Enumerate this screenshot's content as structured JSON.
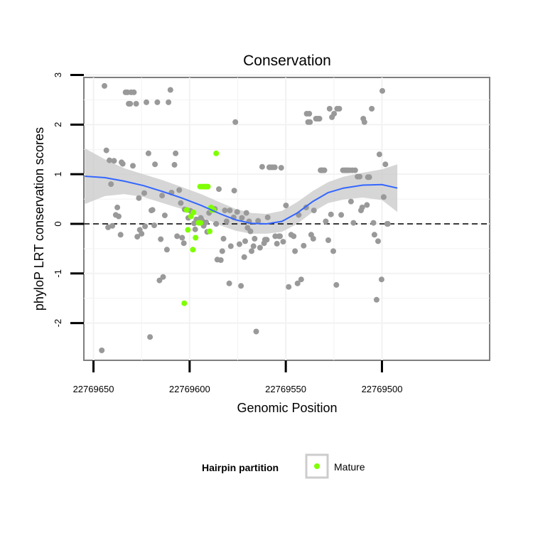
{
  "chart_data": {
    "type": "scatter",
    "title": "Conservation",
    "xlabel": "Genomic Position",
    "ylabel": "phyloP LRT conservation scores",
    "x_reversed": true,
    "xlim": [
      22769655,
      22769444
    ],
    "ylim": [
      -2.75,
      2.95
    ],
    "x_ticks": [
      22769650,
      22769600,
      22769550,
      22769500
    ],
    "x_tick_labels": [
      "22769650",
      "22769600",
      "22769550",
      "22769500"
    ],
    "y_ticks": [
      3,
      2,
      1,
      0,
      -1,
      -2
    ],
    "y_tick_labels": [
      "3",
      "2",
      "1",
      "0",
      "-1",
      "-2"
    ],
    "grid": true,
    "reference_line": {
      "y": 0,
      "style": "dashed",
      "color": "#000000"
    },
    "legend": {
      "title": "Hairpin partition",
      "position": "bottom",
      "entries": [
        {
          "label": "Mature",
          "color": "#7FFF00"
        }
      ]
    },
    "colors": {
      "points": "#999999",
      "mature": "#7FFF00",
      "smooth": "#3366FF",
      "ribbon": "#c8c8c8",
      "panel_border": "#7f7f7f",
      "grid": "#f2f2f2"
    },
    "series": [
      {
        "name": "",
        "color": "#999999",
        "points": [
          [
            22769645.7,
            -2.55
          ],
          [
            22769644.3,
            2.78
          ],
          [
            22769643.3,
            1.48
          ],
          [
            22769642.4,
            -0.07
          ],
          [
            22769641.7,
            1.28
          ],
          [
            22769640.9,
            0.8
          ],
          [
            22769640.2,
            -0.04
          ],
          [
            22769639.3,
            1.27
          ],
          [
            22769638.4,
            0.18
          ],
          [
            22769637.6,
            0.33
          ],
          [
            22769636.9,
            0.15
          ],
          [
            22769635.9,
            -0.22
          ],
          [
            22769635.4,
            1.24
          ],
          [
            22769634.8,
            1.21
          ],
          [
            22769633.3,
            2.65
          ],
          [
            22769632.3,
            2.65
          ],
          [
            22769631.7,
            2.42
          ],
          [
            22769630.9,
            2.42
          ],
          [
            22769630.4,
            2.65
          ],
          [
            22769629.5,
            1.17
          ],
          [
            22769629.0,
            2.65
          ],
          [
            22769627.8,
            2.42
          ],
          [
            22769627.2,
            -0.26
          ],
          [
            22769626.4,
            0.52
          ],
          [
            22769625.9,
            -0.12
          ],
          [
            22769625.0,
            -0.2
          ],
          [
            22769623.6,
            0.62
          ],
          [
            22769623.2,
            -0.05
          ],
          [
            22769622.5,
            2.45
          ],
          [
            22769621.4,
            1.42
          ],
          [
            22769620.6,
            -2.28
          ],
          [
            22769619.9,
            0.27
          ],
          [
            22769619.3,
            0.28
          ],
          [
            22769618.4,
            -0.03
          ],
          [
            22769618.0,
            1.2
          ],
          [
            22769616.8,
            2.45
          ],
          [
            22769615.7,
            -1.14
          ],
          [
            22769615.0,
            -0.31
          ],
          [
            22769614.3,
            0.57
          ],
          [
            22769613.8,
            -1.07
          ],
          [
            22769612.9,
            0.17
          ],
          [
            22769611.8,
            -0.52
          ],
          [
            22769611.0,
            2.45
          ],
          [
            22769610.0,
            2.7
          ],
          [
            22769609.4,
            0.63
          ],
          [
            22769607.9,
            1.19
          ],
          [
            22769607.3,
            1.42
          ],
          [
            22769606.5,
            -0.25
          ],
          [
            22769605.4,
            0.68
          ],
          [
            22769604.6,
            0.42
          ],
          [
            22769603.9,
            -0.28
          ],
          [
            22769603.0,
            -0.39
          ],
          [
            22769602.6,
            0.29
          ],
          [
            22769600.7,
            0.12
          ],
          [
            22769599.5,
            0.26
          ],
          [
            22769597.7,
            0.01
          ],
          [
            22769597.1,
            -0.11
          ],
          [
            22769596.5,
            0.09
          ],
          [
            22769594.2,
            0.12
          ],
          [
            22769593.5,
            0.07
          ],
          [
            22769592.7,
            -0.04
          ],
          [
            22769591.4,
            0.03
          ],
          [
            22769590.9,
            -0.16
          ],
          [
            22769589.9,
            0.22
          ],
          [
            22769586.9,
            0.3
          ],
          [
            22769586.2,
            0.0
          ],
          [
            22769585.6,
            -0.72
          ],
          [
            22769584.8,
            0.7
          ],
          [
            22769583.8,
            -0.73
          ],
          [
            22769583.0,
            -0.55
          ],
          [
            22769582.4,
            -0.3
          ],
          [
            22769581.7,
            0.27
          ],
          [
            22769580.8,
            0.05
          ],
          [
            22769579.4,
            -1.2
          ],
          [
            22769579.1,
            0.27
          ],
          [
            22769578.6,
            -0.45
          ],
          [
            22769577.1,
            0.13
          ],
          [
            22769576.8,
            0.67
          ],
          [
            22769576.2,
            2.05
          ],
          [
            22769575.3,
            0.24
          ],
          [
            22769574.1,
            -0.41
          ],
          [
            22769573.3,
            -1.25
          ],
          [
            22769572.8,
            0.12
          ],
          [
            22769571.6,
            -0.67
          ],
          [
            22769571.1,
            -0.35
          ],
          [
            22769570.5,
            0.22
          ],
          [
            22769569.9,
            -0.08
          ],
          [
            22769569.1,
            0.05
          ],
          [
            22769568.4,
            -0.15
          ],
          [
            22769567.8,
            -0.55
          ],
          [
            22769566.8,
            -0.45
          ],
          [
            22769566.2,
            -0.3
          ],
          [
            22769565.4,
            -2.17
          ],
          [
            22769564.4,
            0.06
          ],
          [
            22769563.4,
            -0.48
          ],
          [
            22769562.3,
            1.15
          ],
          [
            22769561.3,
            -0.39
          ],
          [
            22769560.8,
            -0.32
          ],
          [
            22769559.9,
            -0.32
          ],
          [
            22769559.4,
            0.13
          ],
          [
            22769558.6,
            1.14
          ],
          [
            22769557.8,
            1.14
          ],
          [
            22769556.8,
            1.14
          ],
          [
            22769555.7,
            1.14
          ],
          [
            22769555.5,
            -0.25
          ],
          [
            22769554.6,
            -0.4
          ],
          [
            22769553.5,
            -0.25
          ],
          [
            22769553.0,
            -0.25
          ],
          [
            22769552.4,
            1.13
          ],
          [
            22769551.4,
            -0.36
          ],
          [
            22769549.9,
            0.37
          ],
          [
            22769548.5,
            -1.27
          ],
          [
            22769547.2,
            -0.22
          ],
          [
            22769545.9,
            -0.25
          ],
          [
            22769545.2,
            -0.55
          ],
          [
            22769543.9,
            -1.2
          ],
          [
            22769543.3,
            0.18
          ],
          [
            22769542.0,
            -1.12
          ],
          [
            22769540.7,
            -0.44
          ],
          [
            22769539.4,
            0.33
          ],
          [
            22769539.1,
            2.22
          ],
          [
            22769538.4,
            2.05
          ],
          [
            22769537.8,
            2.22
          ],
          [
            22769537.4,
            2.05
          ],
          [
            22769536.8,
            -0.22
          ],
          [
            22769535.7,
            -0.3
          ],
          [
            22769535.4,
            0.27
          ],
          [
            22769534.3,
            2.12
          ],
          [
            22769533.3,
            2.12
          ],
          [
            22769532.5,
            2.12
          ],
          [
            22769531.9,
            1.08
          ],
          [
            22769531.4,
            1.08
          ],
          [
            22769530.8,
            1.08
          ],
          [
            22769529.9,
            1.08
          ],
          [
            22769529.2,
            0.05
          ],
          [
            22769527.9,
            -0.33
          ],
          [
            22769527.2,
            2.32
          ],
          [
            22769526.5,
            0.19
          ],
          [
            22769526.0,
            2.15
          ],
          [
            22769525.3,
            -0.55
          ],
          [
            22769524.9,
            2.22
          ],
          [
            22769523.7,
            -1.23
          ],
          [
            22769523.3,
            2.32
          ],
          [
            22769522.2,
            2.32
          ],
          [
            22769521.2,
            0.18
          ],
          [
            22769520.3,
            1.08
          ],
          [
            22769519.3,
            1.08
          ],
          [
            22769518.6,
            1.08
          ],
          [
            22769517.8,
            1.08
          ],
          [
            22769516.8,
            1.08
          ],
          [
            22769516.1,
            0.45
          ],
          [
            22769515.4,
            1.08
          ],
          [
            22769514.8,
            0.02
          ],
          [
            22769513.9,
            1.08
          ],
          [
            22769512.7,
            0.95
          ],
          [
            22769511.6,
            0.95
          ],
          [
            22769510.9,
            0.27
          ],
          [
            22769510.3,
            0.33
          ],
          [
            22769509.7,
            2.12
          ],
          [
            22769509.1,
            2.05
          ],
          [
            22769507.8,
            0.38
          ],
          [
            22769507.3,
            0.94
          ],
          [
            22769506.6,
            0.94
          ],
          [
            22769505.3,
            2.32
          ],
          [
            22769504.4,
            0.02
          ],
          [
            22769503.9,
            -0.22
          ],
          [
            22769502.8,
            -1.53
          ],
          [
            22769502.0,
            -0.35
          ],
          [
            22769501.3,
            1.4
          ],
          [
            22769500.2,
            -1.12
          ],
          [
            22769499.8,
            2.68
          ],
          [
            22769499.1,
            0.54
          ],
          [
            22769498.2,
            1.2
          ],
          [
            22769497.3,
            0.0
          ],
          [
            22769496.9,
            0.0
          ]
        ]
      },
      {
        "name": "Mature",
        "color": "#7FFF00",
        "points": [
          [
            22769601.5,
            0.28
          ],
          [
            22769600.9,
            -0.12
          ],
          [
            22769599.3,
            0.15
          ],
          [
            22769598.3,
            -0.52
          ],
          [
            22769598.0,
            0.23
          ],
          [
            22769596.9,
            -0.28
          ],
          [
            22769595.4,
            0.02
          ],
          [
            22769594.6,
            0.75
          ],
          [
            22769594.3,
            0.02
          ],
          [
            22769593.3,
            0.75
          ],
          [
            22769592.4,
            0.75
          ],
          [
            22769591.4,
            0.75
          ],
          [
            22769590.5,
            0.75
          ],
          [
            22769589.6,
            -0.15
          ],
          [
            22769588.9,
            0.33
          ],
          [
            22769588.4,
            0.28
          ],
          [
            22769587.5,
            0.28
          ],
          [
            22769586.2,
            1.42
          ],
          [
            22769602.8,
            -1.6
          ]
        ]
      }
    ],
    "smooth": {
      "x": [
        22769654.5,
        22769644,
        22769634,
        22769624,
        22769614,
        22769604,
        22769594,
        22769584,
        22769576,
        22769568,
        22769560,
        22769552,
        22769544,
        22769536,
        22769528,
        22769520,
        22769510,
        22769500,
        22769492
      ],
      "y": [
        0.96,
        0.93,
        0.86,
        0.77,
        0.65,
        0.52,
        0.37,
        0.2,
        0.08,
        0.01,
        0.0,
        0.05,
        0.22,
        0.45,
        0.63,
        0.72,
        0.78,
        0.79,
        0.72
      ],
      "ci_upper": [
        1.52,
        1.3,
        1.12,
        1.0,
        0.88,
        0.74,
        0.6,
        0.43,
        0.3,
        0.22,
        0.2,
        0.26,
        0.44,
        0.66,
        0.84,
        0.95,
        1.03,
        1.1,
        1.2
      ],
      "ci_lower": [
        0.4,
        0.56,
        0.6,
        0.54,
        0.42,
        0.3,
        0.14,
        -0.03,
        -0.14,
        -0.2,
        -0.2,
        -0.16,
        0.0,
        0.24,
        0.42,
        0.49,
        0.53,
        0.48,
        0.24
      ]
    }
  }
}
